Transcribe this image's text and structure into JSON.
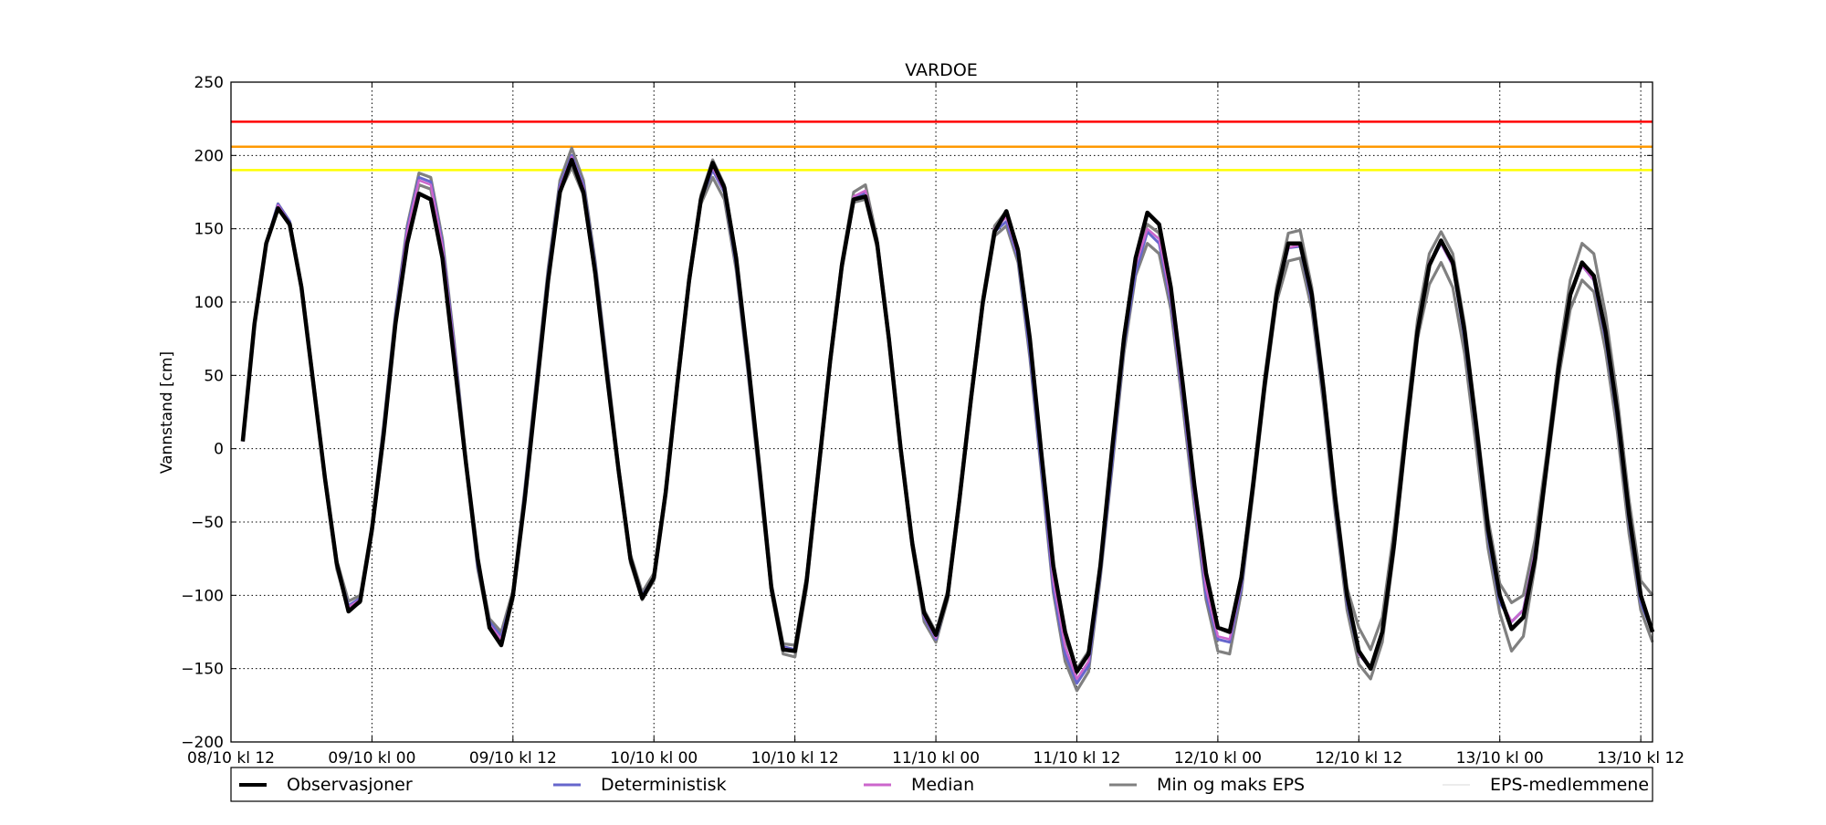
{
  "chart_data": {
    "type": "line",
    "title": "VARDOE",
    "xlabel": "",
    "ylabel": "Vannstand [cm]",
    "ylim": [
      -200,
      250
    ],
    "yticks": [
      250,
      200,
      150,
      100,
      50,
      0,
      -50,
      -100,
      -150,
      -200
    ],
    "ytick_labels": [
      "250",
      "200",
      "150",
      "100",
      "50",
      "0",
      "−50",
      "−100",
      "−150",
      "−200"
    ],
    "xlim": [
      0,
      121
    ],
    "xticks": [
      0,
      12,
      24,
      36,
      48,
      60,
      72,
      84,
      96,
      108,
      120
    ],
    "xtick_labels": [
      "08/10 kl 12",
      "09/10 kl 00",
      "09/10 kl 12",
      "10/10 kl 00",
      "10/10 kl 12",
      "11/10 kl 00",
      "11/10 kl 12",
      "12/10 kl 00",
      "12/10 kl 12",
      "13/10 kl 00",
      "13/10 kl 12"
    ],
    "x_unit": "hours since 08/10 kl 12",
    "grid": true,
    "legend_position": "bottom",
    "thresholds": [
      {
        "value": 223,
        "color": "#ff0000"
      },
      {
        "value": 206,
        "color": "#ff9900"
      },
      {
        "value": 190,
        "color": "#ffff00"
      }
    ],
    "series": [
      {
        "name": "Observasjoner",
        "color": "#000000",
        "start": 1,
        "values": [
          5,
          85,
          140,
          164,
          153,
          110,
          45,
          -20,
          -78,
          -111,
          -104,
          -55,
          10,
          85,
          140,
          174,
          170,
          130,
          60,
          -10,
          -75,
          -122,
          -134,
          -100,
          -35,
          40,
          115,
          175,
          197,
          175,
          120,
          50,
          -15,
          -75,
          -102,
          -88,
          -30,
          45,
          115,
          170,
          195,
          178,
          130,
          60,
          -15,
          -95,
          -137,
          -138,
          -90,
          -15,
          60,
          125,
          170,
          172,
          140,
          75,
          0,
          -65,
          -112,
          -127,
          -100,
          -35,
          35,
          100,
          148,
          162,
          135,
          75,
          -5,
          -80,
          -125,
          -152,
          -140,
          -80,
          0,
          75,
          130,
          161,
          153,
          110,
          45,
          -25,
          -85,
          -122,
          -125,
          -88,
          -25,
          45,
          105,
          140,
          140,
          105,
          40,
          -35,
          -100,
          -138,
          -150,
          -125,
          -65,
          10,
          80,
          125,
          142,
          127,
          80,
          15,
          -55,
          -100,
          -123,
          -115,
          -75,
          -10,
          55,
          105,
          127,
          118,
          80,
          25,
          -45,
          -100,
          -125
        ]
      },
      {
        "name": "Deterministisk",
        "color": "#6666cc",
        "start": 1,
        "values": [
          5,
          85,
          140,
          167,
          155,
          110,
          45,
          -20,
          -80,
          -107,
          -102,
          -55,
          15,
          90,
          150,
          185,
          182,
          140,
          70,
          -10,
          -80,
          -118,
          -128,
          -100,
          -30,
          45,
          120,
          180,
          200,
          180,
          125,
          55,
          -15,
          -75,
          -100,
          -88,
          -30,
          45,
          115,
          170,
          190,
          175,
          125,
          55,
          -20,
          -95,
          -135,
          -137,
          -90,
          -15,
          60,
          125,
          170,
          175,
          140,
          75,
          0,
          -65,
          -115,
          -130,
          -100,
          -35,
          35,
          100,
          148,
          155,
          130,
          65,
          -15,
          -95,
          -140,
          -160,
          -148,
          -85,
          -10,
          70,
          120,
          148,
          140,
          100,
          35,
          -35,
          -100,
          -130,
          -132,
          -95,
          -25,
          45,
          105,
          137,
          138,
          100,
          35,
          -40,
          -105,
          -140,
          -150,
          -125,
          -65,
          10,
          80,
          125,
          140,
          125,
          75,
          10,
          -60,
          -105,
          -118,
          -110,
          -70,
          -10,
          55,
          105,
          125,
          115,
          75,
          20,
          -50,
          -105,
          -125
        ]
      },
      {
        "name": "Median",
        "color": "#cc66cc",
        "start": 1,
        "values": [
          5,
          85,
          140,
          166,
          154,
          110,
          45,
          -20,
          -79,
          -108,
          -103,
          -55,
          12,
          88,
          148,
          183,
          180,
          138,
          68,
          -10,
          -78,
          -120,
          -130,
          -100,
          -32,
          43,
          118,
          178,
          199,
          178,
          123,
          53,
          -15,
          -75,
          -101,
          -88,
          -30,
          45,
          115,
          170,
          192,
          176,
          127,
          57,
          -18,
          -95,
          -136,
          -138,
          -90,
          -15,
          60,
          125,
          172,
          176,
          140,
          75,
          0,
          -65,
          -114,
          -129,
          -100,
          -35,
          35,
          100,
          150,
          158,
          132,
          70,
          -10,
          -90,
          -135,
          -157,
          -145,
          -83,
          -5,
          72,
          125,
          150,
          143,
          103,
          38,
          -32,
          -95,
          -128,
          -130,
          -92,
          -25,
          45,
          105,
          137,
          139,
          102,
          38,
          -38,
          -103,
          -140,
          -150,
          -127,
          -65,
          10,
          80,
          127,
          140,
          125,
          77,
          12,
          -57,
          -102,
          -118,
          -110,
          -70,
          -10,
          55,
          105,
          125,
          115,
          77,
          22,
          -48,
          -102,
          -125
        ]
      },
      {
        "name": "Min og maks EPS",
        "color": "#808080",
        "start": 1,
        "values_min": [
          5,
          85,
          140,
          164,
          152,
          108,
          43,
          -22,
          -82,
          -110,
          -105,
          -58,
          8,
          83,
          145,
          180,
          177,
          135,
          65,
          -12,
          -82,
          -122,
          -132,
          -103,
          -35,
          40,
          115,
          175,
          192,
          173,
          118,
          48,
          -18,
          -78,
          -103,
          -90,
          -32,
          42,
          112,
          167,
          185,
          170,
          122,
          52,
          -23,
          -98,
          -140,
          -142,
          -95,
          -18,
          57,
          122,
          168,
          170,
          137,
          72,
          -3,
          -68,
          -118,
          -132,
          -103,
          -38,
          32,
          97,
          145,
          152,
          127,
          62,
          -18,
          -98,
          -145,
          -165,
          -152,
          -88,
          -13,
          65,
          118,
          140,
          133,
          95,
          30,
          -40,
          -103,
          -138,
          -140,
          -98,
          -30,
          40,
          100,
          128,
          130,
          95,
          30,
          -45,
          -110,
          -147,
          -157,
          -132,
          -70,
          5,
          75,
          112,
          127,
          110,
          65,
          0,
          -68,
          -112,
          -138,
          -128,
          -80,
          -15,
          48,
          95,
          115,
          107,
          67,
          12,
          -58,
          -110,
          -132
        ],
        "values_max": [
          5,
          85,
          140,
          167,
          155,
          112,
          48,
          -18,
          -76,
          -104,
          -100,
          -52,
          17,
          92,
          152,
          188,
          185,
          143,
          73,
          -7,
          -75,
          -116,
          -125,
          -97,
          -28,
          48,
          123,
          183,
          205,
          183,
          128,
          58,
          -12,
          -72,
          -98,
          -85,
          -27,
          48,
          118,
          173,
          197,
          180,
          132,
          62,
          -13,
          -92,
          -133,
          -134,
          -87,
          -12,
          63,
          128,
          175,
          180,
          143,
          78,
          3,
          -62,
          -110,
          -125,
          -97,
          -32,
          38,
          103,
          152,
          162,
          137,
          72,
          -3,
          -85,
          -130,
          -150,
          -138,
          -78,
          0,
          78,
          130,
          153,
          147,
          106,
          42,
          -28,
          -90,
          -122,
          -124,
          -86,
          -20,
          50,
          110,
          147,
          149,
          110,
          45,
          -30,
          -95,
          -122,
          -137,
          -115,
          -55,
          18,
          88,
          133,
          148,
          133,
          85,
          20,
          -48,
          -92,
          -105,
          -100,
          -62,
          -3,
          62,
          115,
          140,
          133,
          92,
          35,
          -35,
          -90,
          -100
        ]
      },
      {
        "name": "EPS-medlemmene",
        "color": "#d9d9d9"
      }
    ]
  }
}
